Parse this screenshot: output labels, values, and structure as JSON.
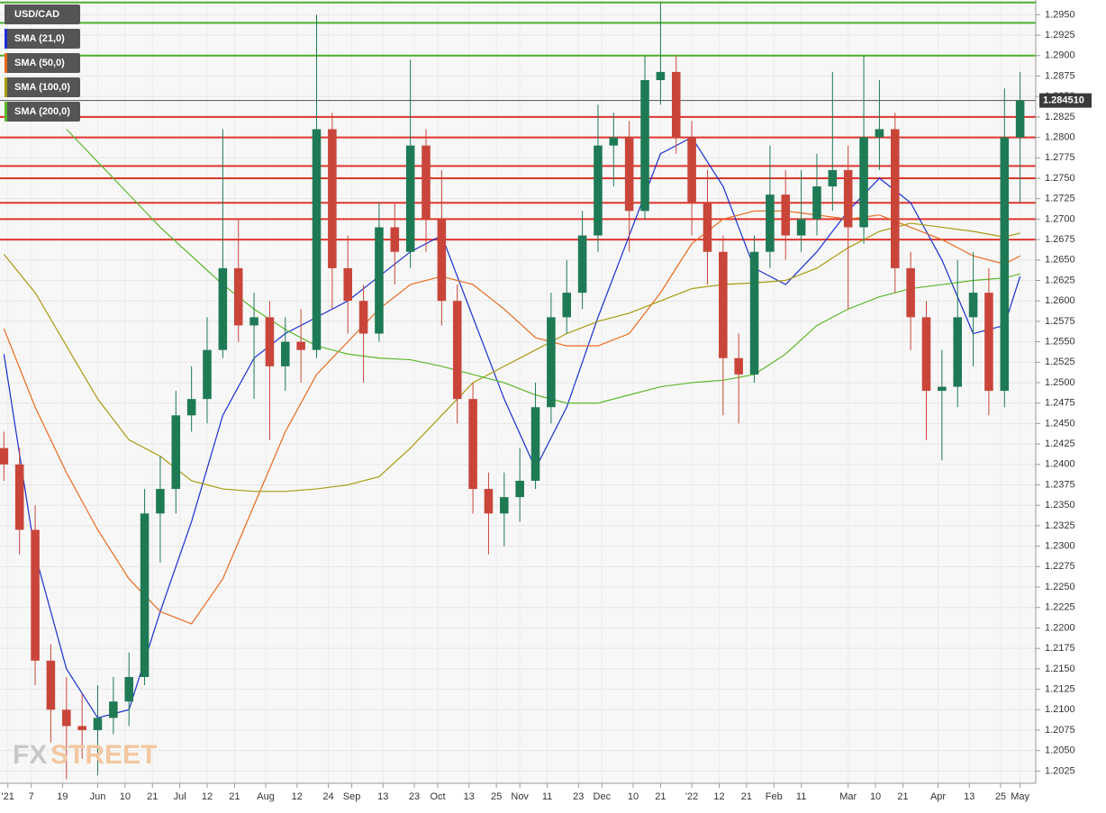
{
  "chart_data": {
    "type": "candlestick",
    "title": "USD/CAD",
    "watermark": [
      "FX",
      "STREET"
    ],
    "xlim": [
      -1,
      264
    ],
    "ylim": [
      1.201,
      1.2968
    ],
    "xticks": [
      {
        "value": 1,
        "label": "'21"
      },
      {
        "value": 7,
        "label": "7"
      },
      {
        "value": 15,
        "label": "19"
      },
      {
        "value": 24,
        "label": "Jun"
      },
      {
        "value": 31,
        "label": "10"
      },
      {
        "value": 38,
        "label": "21"
      },
      {
        "value": 45,
        "label": "Jul"
      },
      {
        "value": 52,
        "label": "12"
      },
      {
        "value": 59,
        "label": "21"
      },
      {
        "value": 67,
        "label": "Aug"
      },
      {
        "value": 75,
        "label": "12"
      },
      {
        "value": 83,
        "label": "24"
      },
      {
        "value": 89,
        "label": "Sep"
      },
      {
        "value": 97,
        "label": "13"
      },
      {
        "value": 105,
        "label": "23"
      },
      {
        "value": 111,
        "label": "Oct"
      },
      {
        "value": 119,
        "label": "13"
      },
      {
        "value": 126,
        "label": "25"
      },
      {
        "value": 132,
        "label": "Nov"
      },
      {
        "value": 139,
        "label": "11"
      },
      {
        "value": 147,
        "label": "23"
      },
      {
        "value": 153,
        "label": "Dec"
      },
      {
        "value": 161,
        "label": "10"
      },
      {
        "value": 168,
        "label": "21"
      },
      {
        "value": 176,
        "label": "'22"
      },
      {
        "value": 183,
        "label": "12"
      },
      {
        "value": 190,
        "label": "21"
      },
      {
        "value": 197,
        "label": "Feb"
      },
      {
        "value": 204,
        "label": "11"
      },
      {
        "value": 216,
        "label": "Mar"
      },
      {
        "value": 223,
        "label": "10"
      },
      {
        "value": 230,
        "label": "21"
      },
      {
        "value": 239,
        "label": "Apr"
      },
      {
        "value": 247,
        "label": "13"
      },
      {
        "value": 255,
        "label": "25"
      },
      {
        "value": 260,
        "label": "May"
      }
    ],
    "yticks": [
      {
        "value": 1.2025,
        "label": "1.2025"
      },
      {
        "value": 1.205,
        "label": "1.2050"
      },
      {
        "value": 1.2075,
        "label": "1.2075"
      },
      {
        "value": 1.21,
        "label": "1.2100"
      },
      {
        "value": 1.2125,
        "label": "1.2125"
      },
      {
        "value": 1.215,
        "label": "1.2150"
      },
      {
        "value": 1.2175,
        "label": "1.2175"
      },
      {
        "value": 1.22,
        "label": "1.2200"
      },
      {
        "value": 1.2225,
        "label": "1.2225"
      },
      {
        "value": 1.225,
        "label": "1.2250"
      },
      {
        "value": 1.2275,
        "label": "1.2275"
      },
      {
        "value": 1.23,
        "label": "1.2300"
      },
      {
        "value": 1.2325,
        "label": "1.2325"
      },
      {
        "value": 1.235,
        "label": "1.2350"
      },
      {
        "value": 1.2375,
        "label": "1.2375"
      },
      {
        "value": 1.24,
        "label": "1.2400"
      },
      {
        "value": 1.2425,
        "label": "1.2425"
      },
      {
        "value": 1.245,
        "label": "1.2450"
      },
      {
        "value": 1.2475,
        "label": "1.2475"
      },
      {
        "value": 1.25,
        "label": "1.2500"
      },
      {
        "value": 1.2525,
        "label": "1.2525"
      },
      {
        "value": 1.255,
        "label": "1.2550"
      },
      {
        "value": 1.2575,
        "label": "1.2575"
      },
      {
        "value": 1.26,
        "label": "1.2600"
      },
      {
        "value": 1.2625,
        "label": "1.2625"
      },
      {
        "value": 1.265,
        "label": "1.2650"
      },
      {
        "value": 1.2675,
        "label": "1.2675"
      },
      {
        "value": 1.27,
        "label": "1.2700"
      },
      {
        "value": 1.2725,
        "label": "1.2725"
      },
      {
        "value": 1.275,
        "label": "1.2750"
      },
      {
        "value": 1.2775,
        "label": "1.2775"
      },
      {
        "value": 1.28,
        "label": "1.2800"
      },
      {
        "value": 1.2825,
        "label": "1.2825"
      },
      {
        "value": 1.285,
        "label": "1.2850"
      },
      {
        "value": 1.2875,
        "label": "1.2875"
      },
      {
        "value": 1.29,
        "label": "1.2900"
      },
      {
        "value": 1.2925,
        "label": "1.2925"
      },
      {
        "value": 1.295,
        "label": "1.2950"
      }
    ],
    "grid": true,
    "up_color": "#1e7a55",
    "down_color": "#c9453a",
    "candles": [
      {
        "x": 0,
        "open": 1.242,
        "high": 1.244,
        "low": 1.238,
        "close": 1.24
      },
      {
        "x": 4,
        "open": 1.24,
        "high": 1.242,
        "low": 1.229,
        "close": 1.232
      },
      {
        "x": 8,
        "open": 1.232,
        "high": 1.235,
        "low": 1.213,
        "close": 1.216
      },
      {
        "x": 12,
        "open": 1.216,
        "high": 1.218,
        "low": 1.206,
        "close": 1.21
      },
      {
        "x": 16,
        "open": 1.21,
        "high": 1.214,
        "low": 1.2015,
        "close": 1.208
      },
      {
        "x": 20,
        "open": 1.208,
        "high": 1.212,
        "low": 1.204,
        "close": 1.2075
      },
      {
        "x": 24,
        "open": 1.2075,
        "high": 1.213,
        "low": 1.202,
        "close": 1.209
      },
      {
        "x": 28,
        "open": 1.209,
        "high": 1.214,
        "low": 1.207,
        "close": 1.211
      },
      {
        "x": 32,
        "open": 1.211,
        "high": 1.217,
        "low": 1.208,
        "close": 1.214
      },
      {
        "x": 36,
        "open": 1.214,
        "high": 1.237,
        "low": 1.213,
        "close": 1.234
      },
      {
        "x": 40,
        "open": 1.234,
        "high": 1.241,
        "low": 1.228,
        "close": 1.237
      },
      {
        "x": 44,
        "open": 1.237,
        "high": 1.249,
        "low": 1.234,
        "close": 1.246
      },
      {
        "x": 48,
        "open": 1.246,
        "high": 1.252,
        "low": 1.244,
        "close": 1.248
      },
      {
        "x": 52,
        "open": 1.248,
        "high": 1.258,
        "low": 1.245,
        "close": 1.254
      },
      {
        "x": 56,
        "open": 1.254,
        "high": 1.281,
        "low": 1.253,
        "close": 1.264
      },
      {
        "x": 60,
        "open": 1.264,
        "high": 1.27,
        "low": 1.255,
        "close": 1.257
      },
      {
        "x": 64,
        "open": 1.257,
        "high": 1.261,
        "low": 1.248,
        "close": 1.258
      },
      {
        "x": 68,
        "open": 1.258,
        "high": 1.26,
        "low": 1.243,
        "close": 1.252
      },
      {
        "x": 72,
        "open": 1.252,
        "high": 1.258,
        "low": 1.249,
        "close": 1.255
      },
      {
        "x": 76,
        "open": 1.255,
        "high": 1.259,
        "low": 1.25,
        "close": 1.254
      },
      {
        "x": 80,
        "open": 1.254,
        "high": 1.295,
        "low": 1.253,
        "close": 1.281
      },
      {
        "x": 84,
        "open": 1.281,
        "high": 1.283,
        "low": 1.259,
        "close": 1.264
      },
      {
        "x": 88,
        "open": 1.264,
        "high": 1.268,
        "low": 1.256,
        "close": 1.26
      },
      {
        "x": 92,
        "open": 1.26,
        "high": 1.262,
        "low": 1.25,
        "close": 1.256
      },
      {
        "x": 96,
        "open": 1.256,
        "high": 1.272,
        "low": 1.255,
        "close": 1.269
      },
      {
        "x": 100,
        "open": 1.269,
        "high": 1.272,
        "low": 1.262,
        "close": 1.266
      },
      {
        "x": 104,
        "open": 1.266,
        "high": 1.2895,
        "low": 1.264,
        "close": 1.279
      },
      {
        "x": 108,
        "open": 1.279,
        "high": 1.281,
        "low": 1.266,
        "close": 1.27
      },
      {
        "x": 112,
        "open": 1.27,
        "high": 1.276,
        "low": 1.257,
        "close": 1.26
      },
      {
        "x": 116,
        "open": 1.26,
        "high": 1.262,
        "low": 1.245,
        "close": 1.248
      },
      {
        "x": 120,
        "open": 1.248,
        "high": 1.25,
        "low": 1.234,
        "close": 1.237
      },
      {
        "x": 124,
        "open": 1.237,
        "high": 1.239,
        "low": 1.229,
        "close": 1.234
      },
      {
        "x": 128,
        "open": 1.234,
        "high": 1.239,
        "low": 1.23,
        "close": 1.236
      },
      {
        "x": 132,
        "open": 1.236,
        "high": 1.242,
        "low": 1.233,
        "close": 1.238
      },
      {
        "x": 136,
        "open": 1.238,
        "high": 1.25,
        "low": 1.237,
        "close": 1.247
      },
      {
        "x": 140,
        "open": 1.247,
        "high": 1.261,
        "low": 1.245,
        "close": 1.258
      },
      {
        "x": 144,
        "open": 1.258,
        "high": 1.265,
        "low": 1.256,
        "close": 1.261
      },
      {
        "x": 148,
        "open": 1.261,
        "high": 1.271,
        "low": 1.259,
        "close": 1.268
      },
      {
        "x": 152,
        "open": 1.268,
        "high": 1.284,
        "low": 1.266,
        "close": 1.279
      },
      {
        "x": 156,
        "open": 1.279,
        "high": 1.283,
        "low": 1.274,
        "close": 1.28
      },
      {
        "x": 160,
        "open": 1.28,
        "high": 1.282,
        "low": 1.266,
        "close": 1.271
      },
      {
        "x": 164,
        "open": 1.271,
        "high": 1.29,
        "low": 1.27,
        "close": 1.287
      },
      {
        "x": 168,
        "open": 1.287,
        "high": 1.2965,
        "low": 1.284,
        "close": 1.288
      },
      {
        "x": 172,
        "open": 1.288,
        "high": 1.29,
        "low": 1.278,
        "close": 1.28
      },
      {
        "x": 176,
        "open": 1.28,
        "high": 1.282,
        "low": 1.268,
        "close": 1.272
      },
      {
        "x": 180,
        "open": 1.272,
        "high": 1.276,
        "low": 1.262,
        "close": 1.266
      },
      {
        "x": 184,
        "open": 1.266,
        "high": 1.268,
        "low": 1.246,
        "close": 1.253
      },
      {
        "x": 188,
        "open": 1.253,
        "high": 1.256,
        "low": 1.245,
        "close": 1.251
      },
      {
        "x": 192,
        "open": 1.251,
        "high": 1.268,
        "low": 1.25,
        "close": 1.266
      },
      {
        "x": 196,
        "open": 1.266,
        "high": 1.279,
        "low": 1.264,
        "close": 1.273
      },
      {
        "x": 200,
        "open": 1.273,
        "high": 1.276,
        "low": 1.265,
        "close": 1.268
      },
      {
        "x": 204,
        "open": 1.268,
        "high": 1.276,
        "low": 1.266,
        "close": 1.27
      },
      {
        "x": 208,
        "open": 1.27,
        "high": 1.278,
        "low": 1.268,
        "close": 1.274
      },
      {
        "x": 212,
        "open": 1.274,
        "high": 1.288,
        "low": 1.271,
        "close": 1.276
      },
      {
        "x": 216,
        "open": 1.276,
        "high": 1.279,
        "low": 1.259,
        "close": 1.269
      },
      {
        "x": 220,
        "open": 1.269,
        "high": 1.29,
        "low": 1.267,
        "close": 1.28
      },
      {
        "x": 224,
        "open": 1.28,
        "high": 1.287,
        "low": 1.276,
        "close": 1.281
      },
      {
        "x": 228,
        "open": 1.281,
        "high": 1.283,
        "low": 1.261,
        "close": 1.264
      },
      {
        "x": 232,
        "open": 1.264,
        "high": 1.266,
        "low": 1.254,
        "close": 1.258
      },
      {
        "x": 236,
        "open": 1.258,
        "high": 1.26,
        "low": 1.243,
        "close": 1.249
      },
      {
        "x": 240,
        "open": 1.249,
        "high": 1.254,
        "low": 1.2405,
        "close": 1.2495
      },
      {
        "x": 244,
        "open": 1.2495,
        "high": 1.265,
        "low": 1.247,
        "close": 1.258
      },
      {
        "x": 248,
        "open": 1.258,
        "high": 1.266,
        "low": 1.252,
        "close": 1.261
      },
      {
        "x": 252,
        "open": 1.261,
        "high": 1.264,
        "low": 1.246,
        "close": 1.249
      },
      {
        "x": 256,
        "open": 1.249,
        "high": 1.286,
        "low": 1.247,
        "close": 1.28
      },
      {
        "x": 260,
        "open": 1.28,
        "high": 1.288,
        "low": 1.272,
        "close": 1.2845
      }
    ],
    "sma_x": [
      0,
      8,
      16,
      24,
      32,
      40,
      48,
      56,
      64,
      72,
      80,
      88,
      96,
      104,
      112,
      120,
      128,
      136,
      144,
      152,
      160,
      168,
      176,
      184,
      192,
      200,
      208,
      216,
      224,
      232,
      240,
      248,
      256,
      260
    ],
    "series": [
      {
        "name": "SMA (21,0)",
        "color": "#1a2fd0",
        "values": [
          1.2535,
          1.229,
          1.215,
          1.209,
          1.21,
          1.222,
          1.233,
          1.246,
          1.253,
          1.256,
          1.258,
          1.26,
          1.263,
          1.266,
          1.268,
          1.258,
          1.248,
          1.2395,
          1.247,
          1.258,
          1.268,
          1.278,
          1.28,
          1.274,
          1.264,
          1.262,
          1.266,
          1.271,
          1.275,
          1.272,
          1.265,
          1.256,
          1.257,
          1.263
        ]
      },
      {
        "name": "SMA (50,0)",
        "color": "#e86a1c",
        "values": [
          1.2566,
          1.247,
          1.239,
          1.232,
          1.226,
          1.222,
          1.2205,
          1.226,
          1.235,
          1.244,
          1.251,
          1.255,
          1.259,
          1.262,
          1.263,
          1.262,
          1.259,
          1.2555,
          1.2545,
          1.2545,
          1.256,
          1.261,
          1.267,
          1.27,
          1.271,
          1.271,
          1.2705,
          1.27,
          1.2705,
          1.269,
          1.2675,
          1.2655,
          1.2645,
          1.2655
        ]
      },
      {
        "name": "SMA (100,0)",
        "color": "#a89a10",
        "values": [
          1.2657,
          1.261,
          1.2545,
          1.248,
          1.243,
          1.241,
          1.238,
          1.237,
          1.2367,
          1.2367,
          1.237,
          1.2375,
          1.2385,
          1.242,
          1.246,
          1.25,
          1.252,
          1.254,
          1.256,
          1.2575,
          1.2585,
          1.26,
          1.2615,
          1.262,
          1.2622,
          1.2625,
          1.264,
          1.2665,
          1.2685,
          1.2695,
          1.269,
          1.2685,
          1.2678,
          1.2683
        ]
      },
      {
        "name": "SMA (200,0)",
        "color": "#5cb82a",
        "values": [
          null,
          null,
          1.281,
          1.277,
          1.273,
          1.269,
          1.2655,
          1.262,
          1.259,
          1.2565,
          1.2545,
          1.2535,
          1.253,
          1.2528,
          1.252,
          1.251,
          1.25,
          1.2485,
          1.2475,
          1.2475,
          1.2485,
          1.2495,
          1.25,
          1.2503,
          1.251,
          1.2535,
          1.257,
          1.259,
          1.2605,
          1.2615,
          1.262,
          1.2625,
          1.2628,
          1.2633
        ]
      }
    ],
    "levels": [
      {
        "value": 1.2965,
        "color": "#4caf2a"
      },
      {
        "value": 1.294,
        "color": "#4caf2a"
      },
      {
        "value": 1.29,
        "color": "#4caf2a"
      },
      {
        "value": 1.2825,
        "color": "#e0352b"
      },
      {
        "value": 1.28,
        "color": "#e0352b"
      },
      {
        "value": 1.2765,
        "color": "#e0352b"
      },
      {
        "value": 1.275,
        "color": "#e0352b"
      },
      {
        "value": 1.272,
        "color": "#e0352b"
      },
      {
        "value": 1.27,
        "color": "#e0352b"
      },
      {
        "value": 1.2675,
        "color": "#e0352b"
      }
    ],
    "last_price": {
      "value": 1.28451,
      "label": "1.284510"
    }
  }
}
